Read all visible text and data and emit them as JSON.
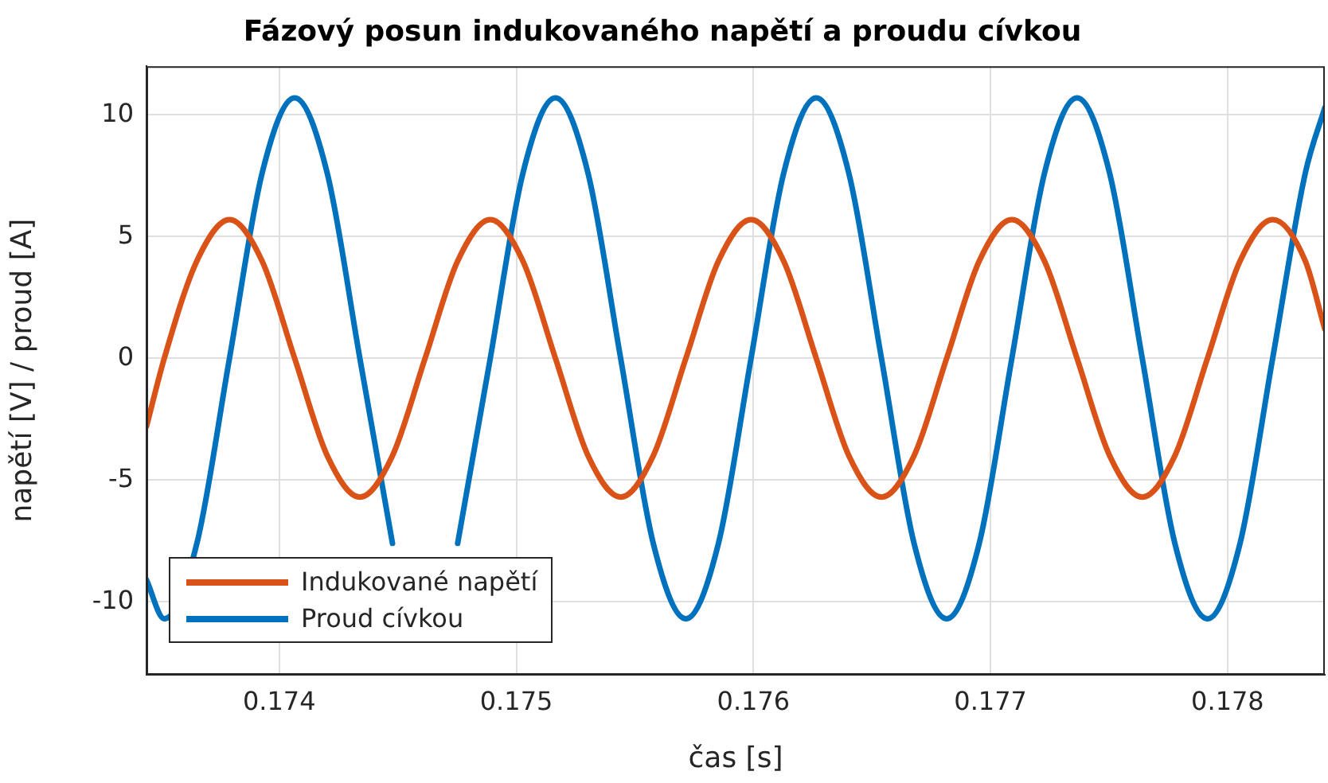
{
  "chart_data": {
    "type": "line",
    "title": "Fázový posun indukovaného napětí a proudu cívkou",
    "xlabel": "čas [s]",
    "ylabel": "napětí [V] / proud [A]",
    "x": [
      0.17344,
      0.173515,
      0.1736525,
      0.17379,
      0.1739275,
      0.174065,
      0.1742025,
      0.17434,
      0.1744775,
      0.174615,
      0.1747525,
      0.17489,
      0.1750275,
      0.175165,
      0.1753025,
      0.17544,
      0.1755775,
      0.175715,
      0.1758525,
      0.17599,
      0.1761275,
      0.176265,
      0.1764025,
      0.17654,
      0.1766775,
      0.176815,
      0.1769525,
      0.17709,
      0.1772275,
      0.177365,
      0.1775025,
      0.17764,
      0.1777775,
      0.177915,
      0.1780525,
      0.17819,
      0.1783275,
      0.17841
    ],
    "series": [
      {
        "name": "Indukované napětí",
        "color": "#d95319",
        "values": [
          -2.8,
          0,
          4.0,
          5.7,
          4.0,
          0,
          -4.0,
          -5.7,
          -4.0,
          0,
          4.0,
          5.7,
          4.0,
          0,
          -4.0,
          -5.7,
          -4.0,
          0,
          4.0,
          5.7,
          4.0,
          0,
          -4.0,
          -5.7,
          -4.0,
          0,
          4.0,
          5.7,
          4.0,
          0,
          -4.0,
          -5.7,
          -4.0,
          0,
          4.0,
          5.7,
          4.0,
          1.2
        ]
      },
      {
        "name": "Proud cívkou",
        "color": "#0072bd",
        "values": [
          -9.1,
          -10.7,
          -7.6,
          0,
          7.6,
          10.7,
          7.6,
          0,
          -7.6,
          null,
          -7.6,
          0,
          7.6,
          10.7,
          7.6,
          0,
          -7.6,
          -10.7,
          -7.6,
          0,
          7.6,
          10.7,
          7.6,
          0,
          -7.6,
          -10.7,
          -7.6,
          0,
          7.6,
          10.7,
          7.6,
          0,
          -7.6,
          -10.7,
          -7.6,
          0,
          7.6,
          10.3
        ]
      }
    ],
    "xlim": [
      0.17344,
      0.17841
    ],
    "xticks": [
      0.174,
      0.175,
      0.176,
      0.177,
      0.178
    ],
    "ylim": [
      -13,
      12
    ],
    "yticks": [
      -10,
      -5,
      0,
      5,
      10
    ],
    "grid": true,
    "legend": "bottom left",
    "marker": "none",
    "line_style": "solid"
  }
}
